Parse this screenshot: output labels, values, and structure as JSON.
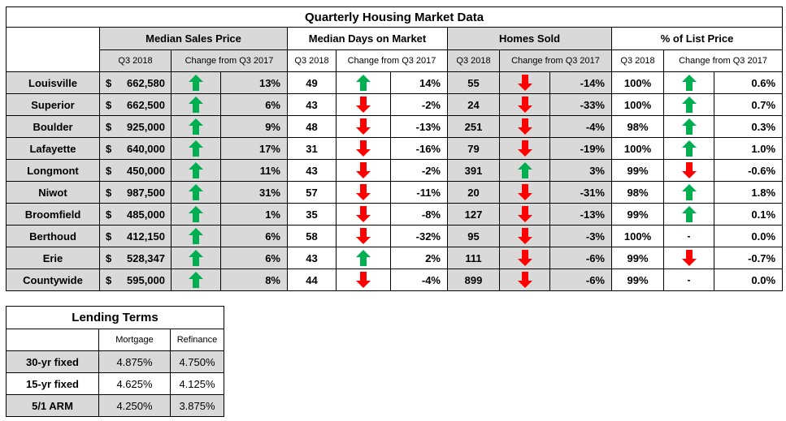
{
  "market": {
    "title": "Quarterly Housing Market Data",
    "groups": [
      "Median Sales Price",
      "Median Days on Market",
      "Homes Sold",
      "% of List Price"
    ],
    "sub_q3": "Q3 2018",
    "sub_change": "Change from Q3 2017",
    "rows": [
      {
        "city": "Louisville",
        "price": "662,580",
        "price_dir": "up",
        "price_chg": "13%",
        "dom": "49",
        "dom_dir": "up",
        "dom_chg": "14%",
        "sold": "55",
        "sold_dir": "down",
        "sold_chg": "-14%",
        "list": "100%",
        "list_dir": "up",
        "list_chg": "0.6%"
      },
      {
        "city": "Superior",
        "price": "662,500",
        "price_dir": "up",
        "price_chg": "6%",
        "dom": "43",
        "dom_dir": "down",
        "dom_chg": "-2%",
        "sold": "24",
        "sold_dir": "down",
        "sold_chg": "-33%",
        "list": "100%",
        "list_dir": "up",
        "list_chg": "0.7%"
      },
      {
        "city": "Boulder",
        "price": "925,000",
        "price_dir": "up",
        "price_chg": "9%",
        "dom": "48",
        "dom_dir": "down",
        "dom_chg": "-13%",
        "sold": "251",
        "sold_dir": "down",
        "sold_chg": "-4%",
        "list": "98%",
        "list_dir": "up",
        "list_chg": "0.3%"
      },
      {
        "city": "Lafayette",
        "price": "640,000",
        "price_dir": "up",
        "price_chg": "17%",
        "dom": "31",
        "dom_dir": "down",
        "dom_chg": "-16%",
        "sold": "79",
        "sold_dir": "down",
        "sold_chg": "-19%",
        "list": "100%",
        "list_dir": "up",
        "list_chg": "1.0%"
      },
      {
        "city": "Longmont",
        "price": "450,000",
        "price_dir": "up",
        "price_chg": "11%",
        "dom": "43",
        "dom_dir": "down",
        "dom_chg": "-2%",
        "sold": "391",
        "sold_dir": "up",
        "sold_chg": "3%",
        "list": "99%",
        "list_dir": "down",
        "list_chg": "-0.6%"
      },
      {
        "city": "Niwot",
        "price": "987,500",
        "price_dir": "up",
        "price_chg": "31%",
        "dom": "57",
        "dom_dir": "down",
        "dom_chg": "-11%",
        "sold": "20",
        "sold_dir": "down",
        "sold_chg": "-31%",
        "list": "98%",
        "list_dir": "up",
        "list_chg": "1.8%"
      },
      {
        "city": "Broomfield",
        "price": "485,000",
        "price_dir": "up",
        "price_chg": "1%",
        "dom": "35",
        "dom_dir": "down",
        "dom_chg": "-8%",
        "sold": "127",
        "sold_dir": "down",
        "sold_chg": "-13%",
        "list": "99%",
        "list_dir": "up",
        "list_chg": "0.1%"
      },
      {
        "city": "Berthoud",
        "price": "412,150",
        "price_dir": "up",
        "price_chg": "6%",
        "dom": "58",
        "dom_dir": "down",
        "dom_chg": "-32%",
        "sold": "95",
        "sold_dir": "down",
        "sold_chg": "-3%",
        "list": "100%",
        "list_dir": "none",
        "list_chg": "0.0%"
      },
      {
        "city": "Erie",
        "price": "528,347",
        "price_dir": "up",
        "price_chg": "6%",
        "dom": "43",
        "dom_dir": "up",
        "dom_chg": "2%",
        "sold": "111",
        "sold_dir": "down",
        "sold_chg": "-6%",
        "list": "99%",
        "list_dir": "down",
        "list_chg": "-0.7%"
      },
      {
        "city": "Countywide",
        "price": "595,000",
        "price_dir": "up",
        "price_chg": "8%",
        "dom": "44",
        "dom_dir": "down",
        "dom_chg": "-4%",
        "sold": "899",
        "sold_dir": "down",
        "sold_chg": "-6%",
        "list": "99%",
        "list_dir": "none",
        "list_chg": "0.0%"
      }
    ]
  },
  "currency_symbol": "$",
  "no_change_symbol": "-",
  "icons": {
    "up": "up-arrow-icon",
    "down": "down-arrow-icon"
  },
  "colors": {
    "up": "#00b050",
    "down": "#ff0000",
    "shade": "#d9d9d9"
  },
  "lending": {
    "title": "Lending Terms",
    "col_mortgage": "Mortgage",
    "col_refinance": "Refinance",
    "rows": [
      {
        "label": "30-yr fixed",
        "mortgage": "4.875%",
        "refinance": "4.750%"
      },
      {
        "label": "15-yr fixed",
        "mortgage": "4.625%",
        "refinance": "4.125%"
      },
      {
        "label": "5/1 ARM",
        "mortgage": "4.250%",
        "refinance": "3.875%"
      }
    ]
  }
}
